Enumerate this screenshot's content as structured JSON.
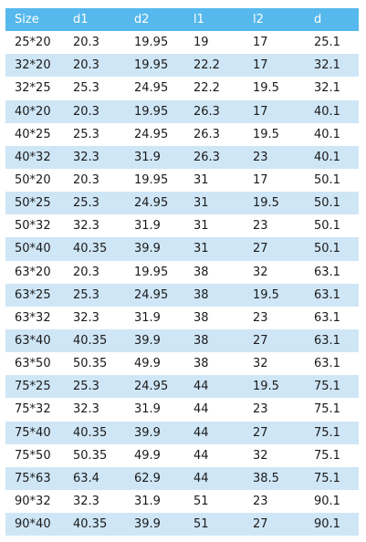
{
  "table": {
    "headers": [
      "Size",
      "d1",
      "d2",
      "l1",
      "l2",
      "d"
    ],
    "rows": [
      [
        "25*20",
        "20.3",
        "19.95",
        "19",
        "17",
        "25.1"
      ],
      [
        "32*20",
        "20.3",
        "19.95",
        "22.2",
        "17",
        "32.1"
      ],
      [
        "32*25",
        "25.3",
        "24.95",
        "22.2",
        "19.5",
        "32.1"
      ],
      [
        "40*20",
        "20.3",
        "19.95",
        "26.3",
        "17",
        "40.1"
      ],
      [
        "40*25",
        "25.3",
        "24.95",
        "26.3",
        "19.5",
        "40.1"
      ],
      [
        "40*32",
        "32.3",
        "31.9",
        "26.3",
        "23",
        "40.1"
      ],
      [
        "50*20",
        "20.3",
        "19.95",
        "31",
        "17",
        "50.1"
      ],
      [
        "50*25",
        "25.3",
        "24.95",
        "31",
        "19.5",
        "50.1"
      ],
      [
        "50*32",
        "32.3",
        "31.9",
        "31",
        "23",
        "50.1"
      ],
      [
        "50*40",
        "40.35",
        "39.9",
        "31",
        "27",
        "50.1"
      ],
      [
        "63*20",
        "20.3",
        "19.95",
        "38",
        "32",
        "63.1"
      ],
      [
        "63*25",
        "25.3",
        "24.95",
        "38",
        "19.5",
        "63.1"
      ],
      [
        "63*32",
        "32.3",
        "31.9",
        "38",
        "23",
        "63.1"
      ],
      [
        "63*40",
        "40.35",
        "39.9",
        "38",
        "27",
        "63.1"
      ],
      [
        "63*50",
        "50.35",
        "49.9",
        "38",
        "32",
        "63.1"
      ],
      [
        "75*25",
        "25.3",
        "24.95",
        "44",
        "19.5",
        "75.1"
      ],
      [
        "75*32",
        "32.3",
        "31.9",
        "44",
        "23",
        "75.1"
      ],
      [
        "75*40",
        "40.35",
        "39.9",
        "44",
        "27",
        "75.1"
      ],
      [
        "75*50",
        "50.35",
        "49.9",
        "44",
        "32",
        "75.1"
      ],
      [
        "75*63",
        "63.4",
        "62.9",
        "44",
        "38.5",
        "75.1"
      ],
      [
        "90*32",
        "32.3",
        "31.9",
        "51",
        "23",
        "90.1"
      ],
      [
        "90*40",
        "40.35",
        "39.9",
        "51",
        "27",
        "90.1"
      ]
    ]
  },
  "colors": {
    "header_bg": "#56b8ec",
    "header_text": "#ffffff",
    "stripe_bg": "#cfe6f6",
    "row_bg": "#ffffff"
  }
}
